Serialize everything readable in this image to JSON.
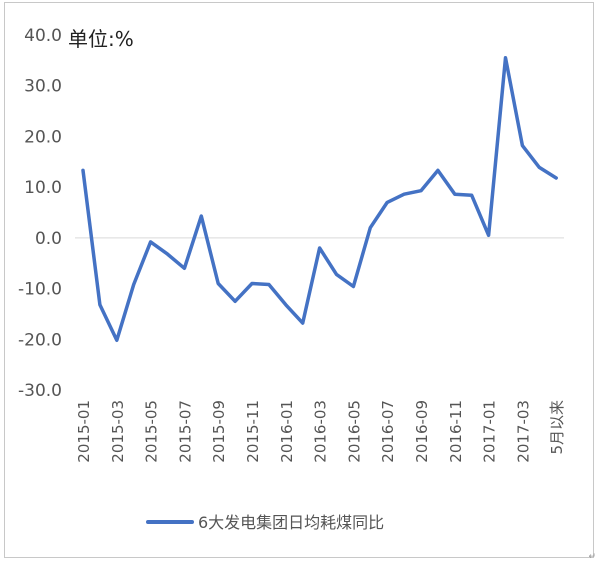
{
  "chart_data": {
    "type": "line",
    "unit_label": "单位:%",
    "y_ticks": [
      "40.0",
      "30.0",
      "20.0",
      "10.0",
      "0.0",
      "-10.0",
      "-20.0",
      "-30.0"
    ],
    "ylim": [
      -30,
      40
    ],
    "x_tick_labels": [
      "2015-01",
      "2015-03",
      "2015-05",
      "2015-07",
      "2015-09",
      "2015-11",
      "2016-01",
      "2016-03",
      "2016-05",
      "2016-07",
      "2016-09",
      "2016-11",
      "2017-01",
      "2017-03",
      "5月以来"
    ],
    "categories": [
      "2015-01",
      "2015-02",
      "2015-03",
      "2015-04",
      "2015-05",
      "2015-06",
      "2015-07",
      "2015-08",
      "2015-09",
      "2015-10",
      "2015-11",
      "2015-12",
      "2016-01",
      "2016-02",
      "2016-03",
      "2016-04",
      "2016-05",
      "2016-06",
      "2016-07",
      "2016-08",
      "2016-09",
      "2016-10",
      "2016-11",
      "2016-12",
      "2017-01",
      "2017-02",
      "2017-03",
      "2017-04",
      "5月以来"
    ],
    "series": [
      {
        "name": "6大发电集团日均耗煤同比",
        "color": "#4472C4",
        "values": [
          13.3,
          -13.2,
          -20.2,
          -9.2,
          -0.8,
          -3.2,
          -6.0,
          4.3,
          -9.0,
          -12.5,
          -9.0,
          -9.2,
          -13.2,
          -16.8,
          -2.0,
          -7.2,
          -9.6,
          2.0,
          7.0,
          8.6,
          9.3,
          13.3,
          8.6,
          8.4,
          0.5,
          35.5,
          18.2,
          13.9,
          11.8
        ]
      }
    ],
    "grid": false,
    "legend_position": "bottom"
  },
  "corner_mark": "↵"
}
